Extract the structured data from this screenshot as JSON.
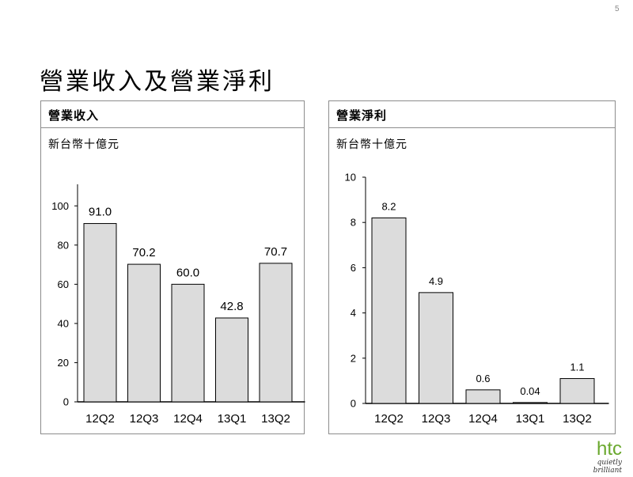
{
  "page": {
    "number": "5",
    "title": "營業收入及營業淨利"
  },
  "brand": {
    "mark": "htc",
    "tagline": "quietly brilliant",
    "color": "#6aa82e"
  },
  "chart_data": [
    {
      "type": "bar",
      "title": "營業收入",
      "unit": "新台幣十億元",
      "categories": [
        "12Q2",
        "12Q3",
        "12Q4",
        "13Q1",
        "13Q2"
      ],
      "values": [
        91.0,
        70.2,
        60.0,
        42.8,
        70.7
      ],
      "labels": [
        "91.0",
        "70.2",
        "60.0",
        "42.8",
        "70.7"
      ],
      "yticks": [
        "0",
        "20",
        "40",
        "60",
        "80",
        "100"
      ],
      "ylim": [
        0,
        111
      ],
      "grid": false,
      "bar_color": "#dcdcdc"
    },
    {
      "type": "bar",
      "title": "營業淨利",
      "unit": "新台幣十億元",
      "categories": [
        "12Q2",
        "12Q3",
        "12Q4",
        "13Q1",
        "13Q2"
      ],
      "values": [
        8.2,
        4.9,
        0.6,
        0.04,
        1.1
      ],
      "labels": [
        "8.2",
        "4.9",
        "0.6",
        "0.04",
        "1.1"
      ],
      "yticks": [
        "0",
        "2",
        "4",
        "6",
        "8",
        "10"
      ],
      "ylim": [
        0,
        10
      ],
      "grid": false,
      "bar_color": "#dcdcdc"
    }
  ]
}
